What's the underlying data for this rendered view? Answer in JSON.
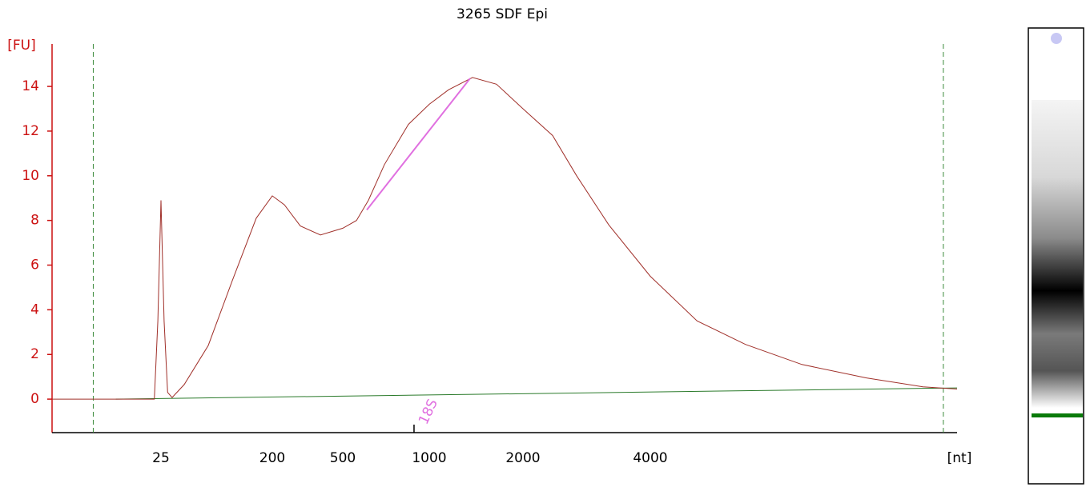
{
  "chart_data": {
    "type": "line",
    "title": "3265 SDF Epi",
    "y_label": "[FU]",
    "x_label": "[nt]",
    "x": [
      3.3,
      5.5,
      10,
      22.1,
      23.6,
      25,
      26.5,
      28.3,
      30.8,
      38.6,
      60.4,
      94.6,
      148,
      200,
      234,
      288,
      374,
      500,
      558,
      614,
      698,
      846,
      1000,
      1153,
      1377,
      1644,
      2000,
      2350,
      2679,
      3190,
      4000,
      5150,
      6690,
      9080,
      12870,
      17460,
      21000
    ],
    "values": [
      0,
      0,
      0,
      0,
      3.5,
      8.9,
      3.5,
      0.3,
      0.07,
      0.65,
      2.4,
      5.3,
      8.1,
      9.1,
      8.7,
      7.75,
      7.35,
      7.65,
      8.0,
      8.9,
      10.5,
      12.3,
      13.2,
      13.85,
      14.4,
      14.1,
      13.0,
      11.8,
      10.0,
      7.8,
      5.5,
      3.5,
      2.45,
      1.55,
      0.95,
      0.55,
      0.45
    ],
    "color": "#a0302a",
    "baseline": {
      "x": [
        10.8,
        21000
      ],
      "values": [
        0,
        0.5
      ],
      "color": "#2a7a2a"
    },
    "fit_line": {
      "x": [
        606,
        1353
      ],
      "values": [
        8.47,
        14.36
      ],
      "color": "#e070e0"
    },
    "marker_lines": {
      "x": [
        7.1,
        19500
      ],
      "color": "#3a8a3a"
    },
    "annotation": {
      "text": "18S",
      "x": 885,
      "color": "#e070e0"
    },
    "xlim": [
      3.3,
      21000
    ],
    "xticks": [
      25,
      200,
      500,
      1000,
      2000,
      4000
    ],
    "ylim": [
      -1.5,
      15.9
    ],
    "yticks": [
      0,
      2,
      4,
      6,
      8,
      10,
      12,
      14
    ]
  }
}
